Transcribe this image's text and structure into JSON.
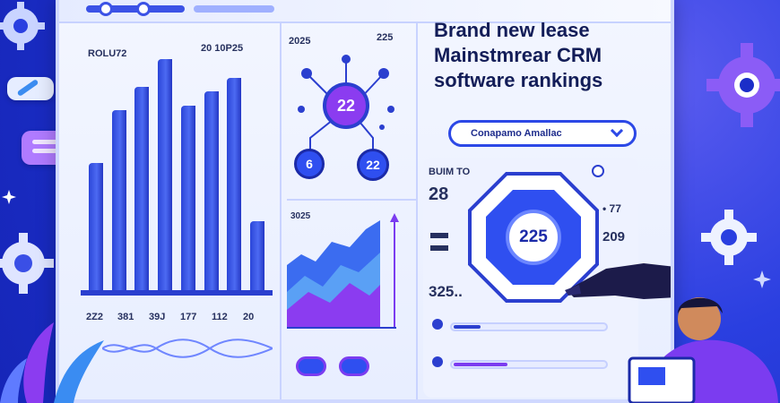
{
  "bar_chart": {
    "top_left_label": "ROLU72",
    "top_right_label": "20  10P25",
    "values": [
      55,
      78,
      88,
      100,
      80,
      86,
      92,
      30
    ],
    "tick_labels": [
      "2Z2",
      "381",
      "39J",
      "177",
      "112",
      "20"
    ]
  },
  "network": {
    "year_left": "2025",
    "year_right": "225",
    "center_value": "22",
    "left_value": "6",
    "right_value": "22"
  },
  "area_chart": {
    "year": "3025"
  },
  "headline": {
    "line1": "Brand new lease",
    "line2": "Mainstmrear CRM",
    "line3": "software rankings"
  },
  "search": {
    "value": "Conapamo Amallac"
  },
  "rating": {
    "label": "BUIM TO",
    "score_top": "28",
    "badge_value": "225",
    "right_top": "• 77",
    "right_bottom": "209",
    "bottom_value": "325.."
  },
  "colors": {
    "accent": "#2c48e6",
    "purple": "#8b3cf0",
    "background": "#1d2fd0"
  }
}
